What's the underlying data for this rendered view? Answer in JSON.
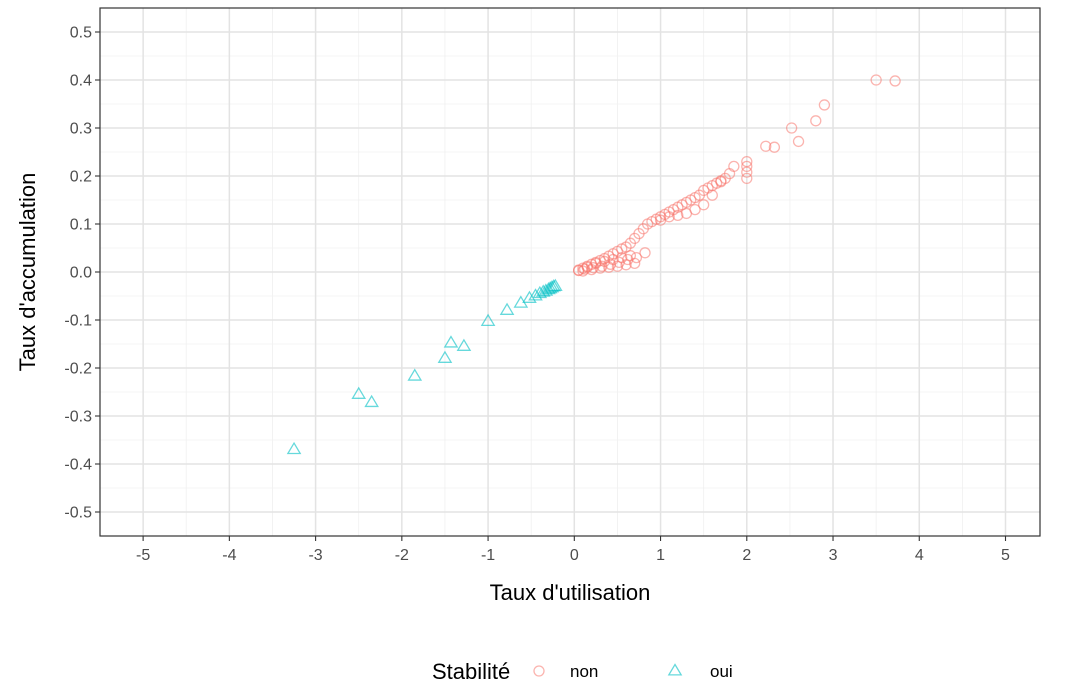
{
  "chart_data": {
    "type": "scatter",
    "title": "",
    "xlabel": "Taux d'utilisation",
    "ylabel": "Taux d'accumulation",
    "xlim": [
      -5.5,
      5.4
    ],
    "ylim": [
      -0.55,
      0.55
    ],
    "x_ticks": [
      -5,
      -4,
      -3,
      -2,
      -1,
      0,
      1,
      2,
      3,
      4,
      5
    ],
    "y_ticks": [
      -0.5,
      -0.4,
      -0.3,
      -0.2,
      -0.1,
      0.0,
      0.1,
      0.2,
      0.3,
      0.4,
      0.5
    ],
    "x_tick_labels": [
      "-5",
      "-4",
      "-3",
      "-2",
      "-1",
      "0",
      "1",
      "2",
      "3",
      "4",
      "5"
    ],
    "y_tick_labels": [
      "-0.5",
      "-0.4",
      "-0.3",
      "-0.2",
      "-0.1",
      "0.0",
      "0.1",
      "0.2",
      "0.3",
      "0.4",
      "0.5"
    ],
    "grid": true,
    "legend_position": "bottom",
    "legend_title": "Stabilité",
    "series": [
      {
        "name": "non",
        "marker": "circle",
        "color": "#F8766D",
        "x": [
          0.05,
          0.1,
          0.15,
          0.2,
          0.25,
          0.3,
          0.35,
          0.4,
          0.45,
          0.5,
          0.55,
          0.6,
          0.65,
          0.7,
          0.75,
          0.8,
          0.85,
          0.9,
          0.95,
          1.0,
          1.05,
          1.1,
          1.15,
          1.2,
          1.25,
          1.3,
          1.35,
          1.4,
          1.45,
          1.5,
          1.55,
          1.6,
          1.65,
          1.7,
          1.75,
          1.8,
          1.85,
          2.0,
          2.0,
          2.0,
          2.0,
          2.22,
          2.32,
          2.52,
          2.6,
          2.8,
          2.9,
          3.5,
          3.72,
          0.1,
          0.2,
          0.3,
          0.4,
          0.5,
          0.6,
          0.7,
          0.15,
          0.25,
          0.35,
          0.45,
          0.55,
          0.65,
          1.0,
          1.1,
          1.2,
          1.3,
          1.4,
          1.5,
          1.6,
          1.7,
          0.05,
          0.12,
          0.22,
          0.32,
          0.42,
          0.52,
          0.62,
          0.72,
          0.82
        ],
        "y": [
          0.004,
          0.008,
          0.012,
          0.016,
          0.02,
          0.024,
          0.028,
          0.033,
          0.038,
          0.043,
          0.048,
          0.052,
          0.06,
          0.07,
          0.08,
          0.09,
          0.1,
          0.105,
          0.11,
          0.115,
          0.12,
          0.125,
          0.13,
          0.135,
          0.14,
          0.145,
          0.15,
          0.155,
          0.16,
          0.17,
          0.175,
          0.18,
          0.185,
          0.19,
          0.195,
          0.205,
          0.22,
          0.23,
          0.22,
          0.208,
          0.195,
          0.262,
          0.26,
          0.3,
          0.272,
          0.315,
          0.348,
          0.4,
          0.398,
          0.002,
          0.005,
          0.008,
          0.01,
          0.012,
          0.015,
          0.018,
          0.01,
          0.018,
          0.022,
          0.026,
          0.03,
          0.034,
          0.108,
          0.115,
          0.118,
          0.122,
          0.13,
          0.14,
          0.16,
          0.188,
          0.003,
          0.006,
          0.009,
          0.012,
          0.016,
          0.02,
          0.026,
          0.03,
          0.04
        ]
      },
      {
        "name": "oui",
        "marker": "triangle",
        "color": "#00BFC4",
        "x": [
          -3.25,
          -2.5,
          -2.35,
          -1.85,
          -1.5,
          -1.43,
          -1.28,
          -1.0,
          -0.78,
          -0.62,
          -0.52,
          -0.45,
          -0.4,
          -0.36,
          -0.33,
          -0.3,
          -0.28,
          -0.26,
          -0.24,
          -0.22
        ],
        "y": [
          -0.37,
          -0.255,
          -0.272,
          -0.217,
          -0.18,
          -0.148,
          -0.155,
          -0.103,
          -0.08,
          -0.065,
          -0.055,
          -0.05,
          -0.045,
          -0.042,
          -0.04,
          -0.037,
          -0.035,
          -0.033,
          -0.031,
          -0.03
        ]
      }
    ]
  }
}
